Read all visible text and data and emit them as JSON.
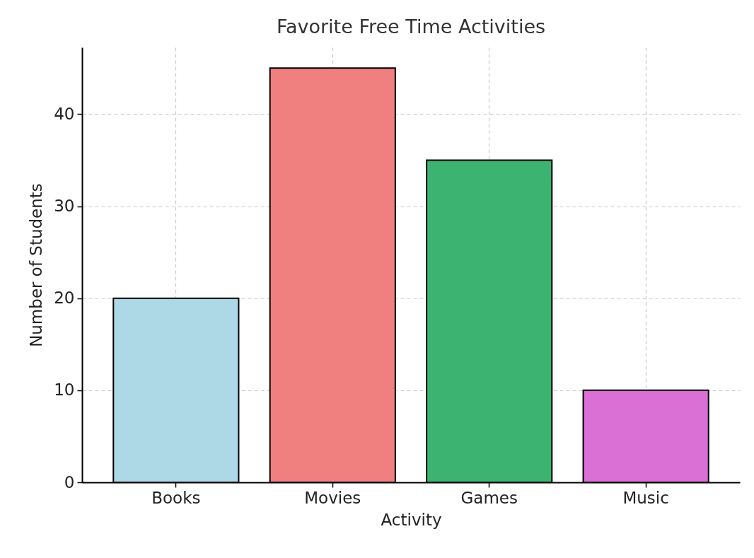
{
  "chart_data": {
    "type": "bar",
    "title": "Favorite Free Time Activities",
    "xlabel": "Activity",
    "ylabel": "Number of Students",
    "categories": [
      "Books",
      "Movies",
      "Games",
      "Music"
    ],
    "values": [
      20,
      45,
      35,
      10
    ],
    "colors": [
      "#add8e6",
      "#f08080",
      "#3cb371",
      "#da70d6"
    ],
    "ylim": [
      0,
      47.25
    ],
    "yticks": [
      0,
      10,
      20,
      30,
      40
    ],
    "grid": true
  }
}
